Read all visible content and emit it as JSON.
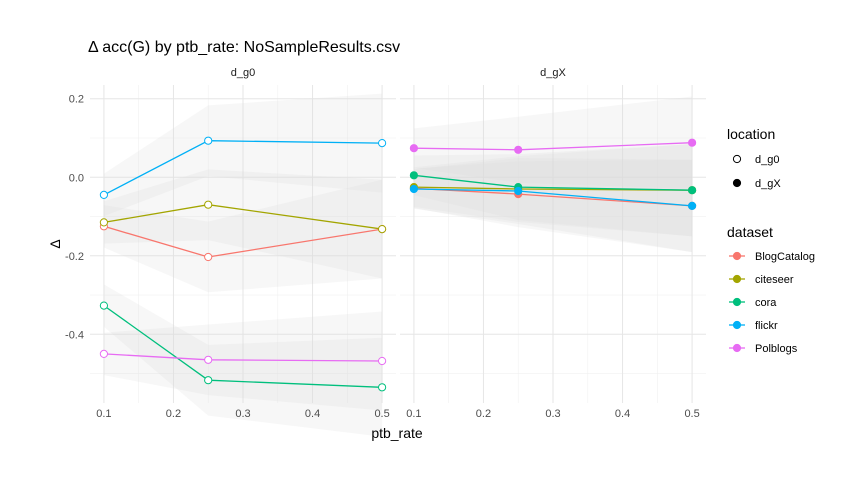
{
  "chart_data": {
    "type": "line",
    "title": "Δ acc(G) by ptb_rate: NoSampleResults.csv",
    "xlabel": "ptb_rate",
    "ylabel": "Δ",
    "facets": [
      "d_g0",
      "d_gX"
    ],
    "x_ticks": [
      0.1,
      0.2,
      0.3,
      0.4,
      0.5
    ],
    "x_tick_labels": [
      "0.1",
      "0.2",
      "0.3",
      "0.4",
      "0.5"
    ],
    "y_ticks": [
      0.2,
      0.0,
      -0.2,
      -0.4
    ],
    "y_tick_labels": [
      "0.2",
      "0.0",
      "-0.2",
      "-0.4"
    ],
    "xlim": [
      0.08,
      0.52
    ],
    "ylim": [
      -0.575,
      0.235
    ],
    "grid": true,
    "x": [
      0.1,
      0.25,
      0.5
    ],
    "legend": {
      "location_title": "location",
      "location_items": [
        {
          "label": "d_g0",
          "marker": "open-circle"
        },
        {
          "label": "d_gX",
          "marker": "filled-circle"
        }
      ],
      "dataset_title": "dataset",
      "placement": "right"
    },
    "series": [
      {
        "name": "BlogCatalog",
        "color": "#F8766D",
        "d_g0": [
          -0.125,
          -0.203,
          -0.132
        ],
        "d_gX": [
          -0.028,
          -0.043,
          -0.073
        ]
      },
      {
        "name": "citeseer",
        "color": "#A3A500",
        "d_g0": [
          -0.115,
          -0.07,
          -0.132
        ],
        "d_gX": [
          -0.025,
          -0.03,
          -0.033
        ]
      },
      {
        "name": "cora",
        "color": "#00BF7D",
        "d_g0": [
          -0.327,
          -0.517,
          -0.535
        ],
        "d_gX": [
          0.005,
          -0.025,
          -0.033
        ]
      },
      {
        "name": "flickr",
        "color": "#00B0F6",
        "d_g0": [
          -0.045,
          0.093,
          0.087
        ],
        "d_gX": [
          -0.03,
          -0.035,
          -0.073
        ]
      },
      {
        "name": "Polblogs",
        "color": "#E76BF3",
        "d_g0": [
          -0.45,
          -0.465,
          -0.468
        ],
        "d_gX": [
          0.074,
          0.07,
          0.088
        ]
      }
    ]
  }
}
